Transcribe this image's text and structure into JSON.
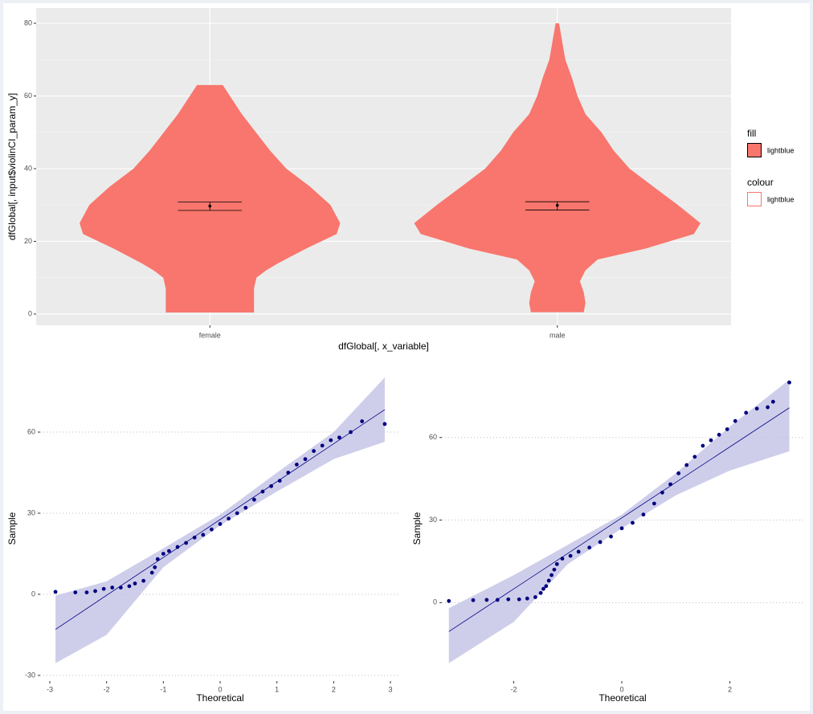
{
  "chart_data": [
    {
      "type": "violin",
      "xlabel": "dfGlobal[, x_variable]",
      "ylabel": "dfGlobal[, input$violinCI_param_y]",
      "categories": [
        "female",
        "male"
      ],
      "ylim": [
        -3.1,
        84.2
      ],
      "yticks": [
        0,
        20,
        40,
        60,
        80
      ],
      "grid": true,
      "fill": "#f8766d",
      "violins": [
        {
          "y": [
            0.4,
            4,
            7,
            10,
            12,
            14,
            18,
            22,
            25,
            30,
            35,
            40,
            45,
            55,
            63
          ],
          "half_widths": [
            0.127,
            0.127,
            0.127,
            0.134,
            0.162,
            0.197,
            0.277,
            0.365,
            0.375,
            0.347,
            0.289,
            0.22,
            0.173,
            0.092,
            0.037
          ],
          "mean": 29.7,
          "ci": [
            28.5,
            30.8
          ]
        },
        {
          "y": [
            0.5,
            3,
            6,
            9,
            12,
            15,
            18,
            22,
            25,
            30,
            35,
            40,
            45,
            50,
            55,
            60,
            65,
            70,
            75,
            80
          ],
          "half_widths": [
            0.076,
            0.081,
            0.076,
            0.065,
            0.081,
            0.116,
            0.254,
            0.393,
            0.412,
            0.347,
            0.277,
            0.208,
            0.162,
            0.127,
            0.081,
            0.058,
            0.042,
            0.023,
            0.014,
            0.005
          ],
          "mean": 29.9,
          "ci": [
            28.6,
            30.9
          ]
        }
      ],
      "legend": [
        {
          "title": "fill",
          "label": "lightblue"
        },
        {
          "title": "colour",
          "label": "lightblue"
        }
      ]
    },
    {
      "type": "qq",
      "xlabel": "Theoretical",
      "ylabel": "Sample",
      "xlim": [
        -3.17,
        3.17
      ],
      "ylim": [
        -32.1,
        80.8
      ],
      "xticks": [
        -3,
        -2,
        -1,
        0,
        1,
        2,
        3
      ],
      "yticks": [
        -30,
        0,
        30,
        60
      ],
      "color": "#000080",
      "band_color": "#c5c6e8",
      "x": [
        -2.9,
        -2.55,
        -2.35,
        -2.2,
        -2.05,
        -1.9,
        -1.75,
        -1.6,
        -1.5,
        -1.35,
        -1.2,
        -1.15,
        -1.1,
        -1,
        -0.9,
        -0.75,
        -0.6,
        -0.45,
        -0.3,
        -0.15,
        0,
        0.15,
        0.3,
        0.45,
        0.6,
        0.75,
        0.9,
        1.05,
        1.2,
        1.35,
        1.5,
        1.65,
        1.8,
        1.95,
        2.1,
        2.3,
        2.5,
        2.9
      ],
      "y": [
        0.9,
        0.7,
        0.7,
        1.2,
        2,
        2.5,
        2.5,
        3,
        4,
        5,
        8,
        10,
        13,
        15,
        16,
        17.5,
        19,
        21,
        22,
        24,
        26,
        28,
        30,
        32,
        35,
        38,
        40,
        42,
        45,
        48,
        50,
        53,
        55,
        57,
        58,
        60,
        64,
        63
      ],
      "line": {
        "x": [
          -2.9,
          2.9
        ],
        "y": [
          -13,
          68.3
        ]
      },
      "band": {
        "x": [
          -2.9,
          -2,
          -1,
          0,
          1,
          2,
          2.9
        ],
        "lower": [
          -25.5,
          -15,
          10,
          25.5,
          38,
          50,
          56.4
        ],
        "upper": [
          -0.5,
          4.8,
          17,
          29.5,
          45,
          60,
          80.2
        ]
      }
    },
    {
      "type": "qq",
      "xlabel": "Theoretical",
      "ylabel": "Sample",
      "xlim": [
        -3.33,
        3.36
      ],
      "ylim": [
        -28.5,
        82.4
      ],
      "xticks": [
        -2,
        0,
        2
      ],
      "yticks": [
        0,
        30,
        60
      ],
      "color": "#000080",
      "band_color": "#c5c6e8",
      "x": [
        -3.2,
        -2.75,
        -2.5,
        -2.3,
        -2.1,
        -1.9,
        -1.75,
        -1.6,
        -1.5,
        -1.45,
        -1.4,
        -1.35,
        -1.3,
        -1.25,
        -1.2,
        -1.1,
        -0.95,
        -0.8,
        -0.6,
        -0.4,
        -0.2,
        0,
        0.2,
        0.4,
        0.6,
        0.75,
        0.9,
        1.05,
        1.2,
        1.35,
        1.5,
        1.65,
        1.8,
        1.95,
        2.1,
        2.3,
        2.5,
        2.7,
        2.8,
        3.1
      ],
      "y": [
        0.6,
        0.9,
        1,
        1,
        1.2,
        1.2,
        1.5,
        2,
        3.5,
        5,
        6,
        8,
        10,
        12,
        14,
        16,
        17,
        18.5,
        20,
        22,
        24,
        27,
        29,
        32,
        36,
        40,
        43,
        47,
        50,
        53,
        57,
        59,
        61,
        63,
        66,
        69,
        70.5,
        71,
        73,
        80
      ],
      "line": {
        "x": [
          -3.2,
          3.1
        ],
        "y": [
          -10.5,
          70.8
        ]
      },
      "band": {
        "x": [
          -3.2,
          -2,
          -1,
          0,
          1,
          2,
          3.1
        ],
        "lower": [
          -22,
          -7,
          14,
          27,
          39,
          48,
          55
        ],
        "upper": [
          -2,
          10,
          21,
          32,
          47,
          64,
          81
        ]
      }
    }
  ]
}
